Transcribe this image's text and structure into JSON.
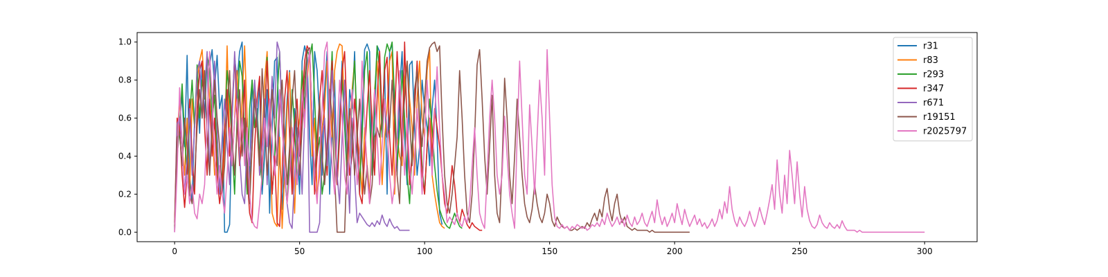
{
  "chart_data": {
    "type": "line",
    "title": "",
    "xlabel": "",
    "ylabel": "",
    "xlim": [
      -15,
      321
    ],
    "ylim": [
      -0.05,
      1.05
    ],
    "xticks": [
      0,
      50,
      100,
      150,
      200,
      250,
      300
    ],
    "yticks": [
      0.0,
      0.2,
      0.4,
      0.6,
      0.8,
      1.0
    ],
    "xtick_labels": [
      "0",
      "50",
      "100",
      "150",
      "200",
      "250",
      "300"
    ],
    "ytick_labels": [
      "0.0",
      "0.2",
      "0.4",
      "0.6",
      "0.8",
      "1.0"
    ],
    "grid": false,
    "legend_position": "top-right",
    "series": [
      {
        "name": "r31",
        "color": "#1f77b4",
        "y": [
          0.02,
          0.55,
          0.58,
          0.72,
          0.45,
          0.93,
          0.3,
          0.15,
          0.6,
          0.78,
          0.52,
          0.89,
          0.6,
          0.92,
          0.88,
          0.96,
          0.76,
          0.93,
          0.65,
          0.72,
          0.0,
          0.0,
          0.04,
          0.6,
          0.92,
          0.8,
          0.95,
          1.0,
          0.4,
          0.6,
          0.25,
          0.8,
          0.58,
          0.55,
          0.8,
          0.2,
          0.4,
          0.75,
          0.1,
          0.55,
          0.9,
          0.92,
          0.4,
          0.12,
          0.45,
          0.7,
          0.85,
          0.2,
          0.65,
          0.45,
          0.2,
          0.9,
          0.98,
          0.92,
          0.5,
          0.25,
          0.95,
          0.85,
          0.6,
          0.3,
          0.75,
          0.95,
          0.2,
          0.55,
          0.8,
          0.25,
          0.6,
          0.9,
          0.55,
          0.3,
          0.75,
          0.65,
          0.95,
          0.45,
          0.2,
          0.62,
          0.96,
          0.99,
          0.95,
          0.3,
          0.6,
          0.98,
          0.95,
          0.55,
          0.85,
          0.2,
          0.95,
          0.99,
          0.65,
          0.3,
          0.75,
          0.95,
          0.5,
          0.25,
          0.88,
          0.9,
          0.55,
          0.3,
          0.45,
          0.8,
          0.65,
          0.55,
          0.35,
          0.65,
          0.8,
          0.5,
          0.1,
          0.04
        ]
      },
      {
        "name": "r83",
        "color": "#ff7f0e",
        "y": [
          0.03,
          0.5,
          0.7,
          0.45,
          0.3,
          0.6,
          0.2,
          0.7,
          0.55,
          0.8,
          0.9,
          0.96,
          0.75,
          0.9,
          0.7,
          0.55,
          0.3,
          0.4,
          0.25,
          0.2,
          0.45,
          0.98,
          0.5,
          0.35,
          0.6,
          0.85,
          0.4,
          0.7,
          0.98,
          0.6,
          0.2,
          0.45,
          0.75,
          0.55,
          0.3,
          0.5,
          0.8,
          0.95,
          0.6,
          0.1,
          0.05,
          0.03,
          0.5,
          0.02,
          0.3,
          0.65,
          0.84,
          0.4,
          0.1,
          0.5,
          0.6,
          0.85,
          0.6,
          0.8,
          0.95,
          0.4,
          0.6,
          0.2,
          0.3,
          0.55,
          0.65,
          0.9,
          0.7,
          0.5,
          0.85,
          0.95,
          0.99,
          0.98,
          0.6,
          0.3,
          0.55,
          0.75,
          0.9,
          0.5,
          0.4,
          0.2,
          0.55,
          0.35,
          0.2,
          0.55,
          0.75,
          0.9,
          0.6,
          0.25,
          0.5,
          0.65,
          0.9,
          0.95,
          0.2,
          0.5,
          0.4,
          0.35,
          0.8,
          0.9,
          0.7,
          0.55,
          0.3,
          0.7,
          0.9,
          0.6,
          0.5,
          0.85,
          0.96,
          0.3,
          0.2,
          0.12,
          0.05,
          0.03,
          0.02
        ]
      },
      {
        "name": "r293",
        "color": "#2ca02c",
        "y": [
          0.03,
          0.4,
          0.55,
          0.78,
          0.5,
          0.3,
          0.6,
          0.8,
          0.55,
          0.88,
          0.6,
          0.8,
          0.7,
          0.93,
          0.85,
          0.6,
          0.72,
          0.4,
          0.2,
          0.3,
          0.55,
          0.85,
          0.7,
          0.45,
          0.2,
          0.6,
          0.9,
          0.82,
          0.5,
          0.2,
          0.65,
          0.8,
          0.55,
          0.65,
          0.4,
          0.25,
          0.6,
          0.92,
          0.55,
          0.2,
          0.4,
          0.7,
          0.95,
          0.6,
          0.3,
          0.15,
          0.4,
          0.75,
          0.55,
          0.25,
          0.5,
          0.85,
          0.65,
          0.96,
          0.92,
          0.99,
          0.7,
          0.4,
          0.5,
          0.2,
          0.3,
          0.45,
          0.65,
          0.95,
          0.5,
          0.25,
          0.55,
          0.8,
          0.6,
          0.3,
          0.4,
          0.7,
          0.9,
          0.55,
          0.25,
          0.5,
          0.85,
          0.95,
          0.6,
          0.3,
          0.7,
          0.98,
          0.85,
          0.5,
          0.92,
          0.99,
          0.95,
          1.0,
          0.7,
          0.35,
          0.55,
          0.85,
          0.6,
          0.3,
          0.15,
          0.45,
          0.65,
          0.88,
          0.6,
          0.35,
          0.2,
          0.45,
          0.7,
          0.55,
          0.35,
          0.22,
          0.12,
          0.08,
          0.05,
          0.03,
          0.02,
          0.06,
          0.1,
          0.06,
          0.03,
          0.02
        ]
      },
      {
        "name": "r347",
        "color": "#d62728",
        "y": [
          0.05,
          0.6,
          0.55,
          0.3,
          0.13,
          0.3,
          0.7,
          0.4,
          0.2,
          0.65,
          0.85,
          0.9,
          0.55,
          0.3,
          0.7,
          0.4,
          0.6,
          0.3,
          0.15,
          0.26,
          0.55,
          0.75,
          0.4,
          0.65,
          0.92,
          0.6,
          0.35,
          0.5,
          0.8,
          0.3,
          0.1,
          0.05,
          0.45,
          0.7,
          0.82,
          0.3,
          0.6,
          0.9,
          0.55,
          0.2,
          0.4,
          0.05,
          0.03,
          0.3,
          0.7,
          0.85,
          0.5,
          0.2,
          0.55,
          0.7,
          0.4,
          0.65,
          0.9,
          0.98,
          0.95,
          0.6,
          0.2,
          0.4,
          0.7,
          0.85,
          0.55,
          0.3,
          0.65,
          0.9,
          0.55,
          0.25,
          0.5,
          0.85,
          0.95,
          0.6,
          0.3,
          0.4,
          0.7,
          0.55,
          0.2,
          0.15,
          0.4,
          0.65,
          0.85,
          0.55,
          0.3,
          0.7,
          0.95,
          0.6,
          0.85,
          0.92,
          0.5,
          0.3,
          0.6,
          0.95,
          0.7,
          0.4,
          1.0,
          0.55,
          0.25,
          0.4,
          0.65,
          0.9,
          0.55,
          0.3,
          0.2,
          0.45,
          0.6,
          0.4,
          0.65,
          0.55,
          0.45,
          0.3,
          0.15,
          0.1,
          0.2,
          0.35,
          0.25,
          0.1,
          0.05,
          0.12,
          0.08,
          0.04,
          0.02,
          0.05,
          0.03,
          0.02,
          0.01,
          0.01
        ]
      },
      {
        "name": "r671",
        "color": "#9467bd",
        "y": [
          0.0,
          0.57,
          0.6,
          0.45,
          0.2,
          0.4,
          0.65,
          0.3,
          0.55,
          0.85,
          0.9,
          0.6,
          0.75,
          0.95,
          0.3,
          0.6,
          0.9,
          0.55,
          0.2,
          0.5,
          0.7,
          0.45,
          0.25,
          0.6,
          0.95,
          0.7,
          0.4,
          0.2,
          0.15,
          0.5,
          0.35,
          0.55,
          0.8,
          0.6,
          0.3,
          0.45,
          0.7,
          0.25,
          0.55,
          0.82,
          0.6,
          1.0,
          0.95,
          0.6,
          0.3,
          0.15,
          0.05,
          0.02,
          0.3,
          0.55,
          0.45,
          0.2,
          0.6,
          0.85,
          0.0,
          0.0,
          0.0,
          0.0,
          0.05,
          0.5,
          0.6,
          0.35,
          0.55,
          0.85,
          0.6,
          0.3,
          0.15,
          0.5,
          0.8,
          0.4,
          0.1,
          0.6,
          0.3,
          0.05,
          0.1,
          0.08,
          0.06,
          0.04,
          0.03,
          0.05,
          0.03,
          0.06,
          0.04,
          0.09,
          0.05,
          0.03,
          0.07,
          0.04,
          0.02,
          0.03,
          0.01,
          0.01,
          0.01,
          0.01,
          0.01
        ]
      },
      {
        "name": "r19151",
        "color": "#8c564b",
        "y": [
          0.01,
          0.5,
          0.52,
          0.35,
          0.6,
          0.45,
          0.2,
          0.15,
          0.3,
          0.55,
          0.75,
          0.6,
          0.85,
          0.5,
          0.3,
          0.55,
          0.8,
          0.6,
          0.45,
          0.2,
          0.35,
          0.65,
          0.85,
          0.5,
          0.3,
          0.55,
          0.75,
          0.4,
          0.6,
          0.35,
          0.15,
          0.45,
          0.7,
          0.55,
          0.35,
          0.86,
          0.6,
          0.3,
          0.5,
          0.75,
          0.55,
          0.35,
          0.65,
          0.8,
          0.5,
          0.25,
          0.45,
          0.7,
          0.85,
          0.5,
          0.3,
          0.55,
          0.8,
          0.95,
          0.97,
          0.6,
          0.3,
          0.5,
          0.7,
          0.4,
          0.25,
          0.45,
          0.75,
          0.6,
          0.3,
          0.0,
          0.0,
          0.0,
          0.0,
          0.4,
          0.65,
          0.55,
          0.3,
          0.5,
          0.7,
          0.4,
          0.2,
          0.35,
          0.15,
          0.25,
          0.5,
          0.55,
          0.5,
          0.6,
          0.7,
          0.5,
          0.55,
          0.8,
          0.6,
          0.3,
          0.15,
          0.55,
          0.7,
          0.9,
          0.6,
          0.35,
          0.75,
          0.85,
          0.6,
          0.45,
          0.7,
          0.9,
          0.97,
          0.99,
          1.0,
          0.95,
          0.98,
          0.6,
          0.3,
          0.15,
          0.1,
          0.2,
          0.35,
          0.5,
          0.85,
          0.6,
          0.3,
          0.1,
          0.05,
          0.2,
          0.5,
          0.88,
          0.96,
          0.7,
          0.4,
          0.2,
          0.45,
          0.72,
          0.3,
          0.1,
          0.05,
          0.35,
          0.81,
          0.6,
          0.3,
          0.15,
          0.4,
          0.7,
          0.5,
          0.3,
          0.15,
          0.08,
          0.05,
          0.12,
          0.25,
          0.15,
          0.08,
          0.05,
          0.1,
          0.2,
          0.15,
          0.06,
          0.03,
          0.08,
          0.05,
          0.03,
          0.02,
          0.03,
          0.01,
          0.01,
          0.02,
          0.01,
          0.02,
          0.03,
          0.02,
          0.05,
          0.03,
          0.07,
          0.1,
          0.06,
          0.12,
          0.08,
          0.18,
          0.23,
          0.12,
          0.06,
          0.15,
          0.2,
          0.1,
          0.05,
          0.08,
          0.03,
          0.02,
          0.01,
          0.02,
          0.01,
          0.01,
          0.01,
          0.01,
          0.01,
          0.0,
          0.01,
          0.0,
          0.0,
          0.0,
          0.0,
          0.0,
          0.0,
          0.0,
          0.0,
          0.0,
          0.0,
          0.0,
          0.0,
          0.0,
          0.0,
          0.0
        ]
      },
      {
        "name": "r2025797",
        "color": "#e377c2",
        "y": [
          0.0,
          0.32,
          0.76,
          0.45,
          0.2,
          0.3,
          0.15,
          0.25,
          0.1,
          0.07,
          0.2,
          0.15,
          0.25,
          0.6,
          0.95,
          0.7,
          0.4,
          0.2,
          0.35,
          0.2,
          0.1,
          0.3,
          0.55,
          0.35,
          0.6,
          0.7,
          0.45,
          0.6,
          0.35,
          0.55,
          0.2,
          0.06,
          0.03,
          0.02,
          0.15,
          0.3,
          0.6,
          0.45,
          0.7,
          0.5,
          0.3,
          0.45,
          0.75,
          0.55,
          0.35,
          0.15,
          0.3,
          0.55,
          0.4,
          0.25,
          0.5,
          0.75,
          0.55,
          0.85,
          0.96,
          0.6,
          0.3,
          0.15,
          0.4,
          0.65,
          0.95,
          1.0,
          0.6,
          0.35,
          0.2,
          0.5,
          0.8,
          0.6,
          0.3,
          0.2,
          0.45,
          0.75,
          0.55,
          0.25,
          0.4,
          0.9,
          0.6,
          0.3,
          0.15,
          0.5,
          0.75,
          0.5,
          0.25,
          0.45,
          0.7,
          0.55,
          0.3,
          0.15,
          0.25,
          0.5,
          0.85,
          0.55,
          0.3,
          0.6,
          0.35,
          0.2,
          0.4,
          0.65,
          0.45,
          0.2,
          0.5,
          0.8,
          0.55,
          0.3,
          0.6,
          0.87,
          0.55,
          0.3,
          0.2,
          0.05,
          0.08,
          0.06,
          0.04,
          0.1,
          0.05,
          0.03,
          0.08,
          0.05,
          0.15,
          0.35,
          0.55,
          0.3,
          0.1,
          0.05,
          0.02,
          0.3,
          0.6,
          0.8,
          0.6,
          0.3,
          0.2,
          0.3,
          0.61,
          0.4,
          0.2,
          0.1,
          0.02,
          0.5,
          0.9,
          0.6,
          0.3,
          0.2,
          0.67,
          0.45,
          0.2,
          0.5,
          0.8,
          0.6,
          0.3,
          0.96,
          0.6,
          0.25,
          0.08,
          0.03,
          0.02,
          0.04,
          0.02,
          0.03,
          0.01,
          0.03,
          0.02,
          0.04,
          0.03,
          0.02,
          0.03,
          0.01,
          0.02,
          0.04,
          0.03,
          0.05,
          0.03,
          0.07,
          0.04,
          0.1,
          0.06,
          0.03,
          0.05,
          0.08,
          0.04,
          0.07,
          0.03,
          0.09,
          0.05,
          0.03,
          0.08,
          0.04,
          0.06,
          0.1,
          0.05,
          0.03,
          0.07,
          0.11,
          0.05,
          0.17,
          0.09,
          0.04,
          0.08,
          0.03,
          0.06,
          0.1,
          0.05,
          0.15,
          0.09,
          0.04,
          0.12,
          0.07,
          0.03,
          0.06,
          0.09,
          0.04,
          0.07,
          0.03,
          0.05,
          0.02,
          0.04,
          0.07,
          0.03,
          0.06,
          0.12,
          0.07,
          0.16,
          0.1,
          0.24,
          0.12,
          0.06,
          0.03,
          0.08,
          0.05,
          0.03,
          0.06,
          0.11,
          0.06,
          0.03,
          0.07,
          0.13,
          0.08,
          0.04,
          0.1,
          0.17,
          0.25,
          0.12,
          0.38,
          0.2,
          0.1,
          0.3,
          0.15,
          0.43,
          0.3,
          0.15,
          0.37,
          0.2,
          0.08,
          0.24,
          0.12,
          0.06,
          0.03,
          0.02,
          0.04,
          0.09,
          0.05,
          0.03,
          0.02,
          0.05,
          0.03,
          0.02,
          0.04,
          0.02,
          0.06,
          0.03,
          0.01,
          0.01,
          0.01,
          0.01,
          0.0,
          0.01,
          0.0,
          0.0,
          0.0,
          0.0,
          0.0,
          0.0,
          0.0,
          0.0,
          0.0,
          0.0,
          0.0,
          0.0,
          0.0,
          0.0,
          0.0,
          0.0,
          0.0,
          0.0,
          0.0,
          0.0,
          0.0,
          0.0,
          0.0,
          0.0,
          0.0,
          0.0
        ]
      }
    ]
  }
}
